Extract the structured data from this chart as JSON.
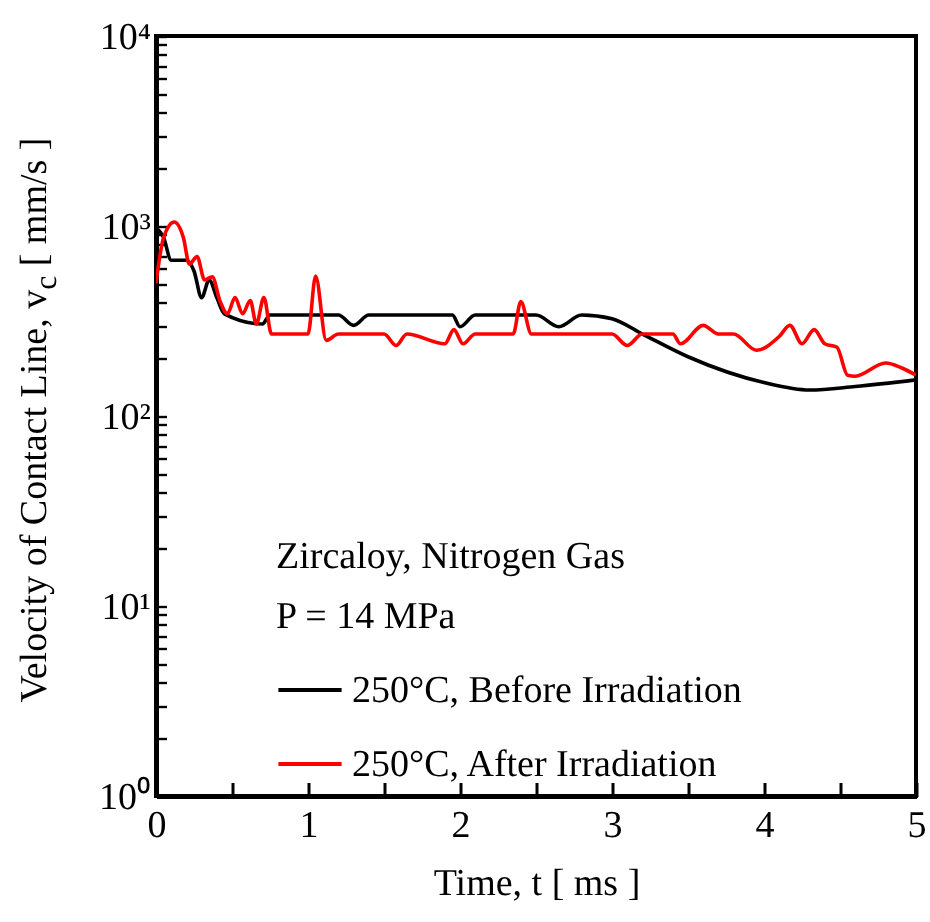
{
  "chart_data": {
    "type": "line",
    "xlabel": "Time,  t   [ ms ]",
    "ylabel": "Velocity of Contact Line,  v$_{c}$  [ mm/s ]",
    "annotations": [
      "Zircaloy, Nitrogen Gas",
      "P = 14 MPa"
    ],
    "log": "y",
    "legend": "bottom",
    "line_style": "solid",
    "marker": "none",
    "grid": false,
    "xlim": [
      0,
      5
    ],
    "xticks": [
      0,
      {
        "value": 0.5,
        "label": null
      },
      1,
      {
        "value": 1.5,
        "label": null
      },
      2,
      {
        "value": 2.5,
        "label": null
      },
      3,
      {
        "value": 3.5,
        "label": null
      },
      4,
      {
        "value": 4.5,
        "label": null
      },
      5
    ],
    "ylim": [
      1,
      10000
    ],
    "yticks": [
      {
        "value": 1,
        "label": "10⁰"
      },
      {
        "value": 2,
        "label": null
      },
      {
        "value": 3,
        "label": null
      },
      {
        "value": 4,
        "label": null
      },
      {
        "value": 5,
        "label": null
      },
      {
        "value": 6,
        "label": null
      },
      {
        "value": 7,
        "label": null
      },
      {
        "value": 8,
        "label": null
      },
      {
        "value": 9,
        "label": null
      },
      {
        "value": 10,
        "label": "10¹"
      },
      {
        "value": 20,
        "label": null
      },
      {
        "value": 30,
        "label": null
      },
      {
        "value": 40,
        "label": null
      },
      {
        "value": 50,
        "label": null
      },
      {
        "value": 60,
        "label": null
      },
      {
        "value": 70,
        "label": null
      },
      {
        "value": 80,
        "label": null
      },
      {
        "value": 90,
        "label": null
      },
      {
        "value": 100,
        "label": "10²"
      },
      {
        "value": 200,
        "label": null
      },
      {
        "value": 300,
        "label": null
      },
      {
        "value": 400,
        "label": null
      },
      {
        "value": 500,
        "label": null
      },
      {
        "value": 600,
        "label": null
      },
      {
        "value": 700,
        "label": null
      },
      {
        "value": 800,
        "label": null
      },
      {
        "value": 900,
        "label": null
      },
      {
        "value": 1000,
        "label": "10³"
      },
      {
        "value": 2000,
        "label": null
      },
      {
        "value": 3000,
        "label": null
      },
      {
        "value": 4000,
        "label": null
      },
      {
        "value": 5000,
        "label": null
      },
      {
        "value": 6000,
        "label": null
      },
      {
        "value": 7000,
        "label": null
      },
      {
        "value": 8000,
        "label": null
      },
      {
        "value": 9000,
        "label": null
      },
      {
        "value": 10000,
        "label": "10⁴"
      }
    ],
    "series": [
      {
        "name": "250°C, Before Irradiation",
        "color": "#000000",
        "x": [
          0,
          0.05,
          0.1,
          0.2,
          0.25,
          0.3,
          0.35,
          0.4,
          0.45,
          0.7,
          0.75,
          1.2,
          1.3,
          1.4,
          1.95,
          2.0,
          2.1,
          2.5,
          2.65,
          2.8,
          3.0,
          3.2,
          3.5,
          4.0,
          4.3,
          4.6,
          5.0
        ],
        "values": [
          980,
          870,
          660,
          660,
          580,
          420,
          520,
          420,
          345,
          305,
          340,
          340,
          300,
          340,
          340,
          295,
          340,
          340,
          295,
          340,
          325,
          270,
          205,
          150,
          137,
          143,
          155
        ]
      },
      {
        "name": "250°C, After Irradiation",
        "color": "#ff0000",
        "x": [
          0,
          0.05,
          0.12,
          0.18,
          0.22,
          0.27,
          0.32,
          0.37,
          0.42,
          0.47,
          0.52,
          0.57,
          0.62,
          0.66,
          0.71,
          0.76,
          1.0,
          1.05,
          1.12,
          1.2,
          1.5,
          1.58,
          1.65,
          1.9,
          1.96,
          2.02,
          2.1,
          2.35,
          2.4,
          2.47,
          2.7,
          3.0,
          3.1,
          3.2,
          3.4,
          3.45,
          3.6,
          3.7,
          3.8,
          3.95,
          4.1,
          4.17,
          4.25,
          4.33,
          4.4,
          4.48,
          4.55,
          4.6,
          4.8,
          4.9,
          5.0
        ],
        "values": [
          500,
          870,
          1050,
          870,
          630,
          690,
          520,
          540,
          405,
          345,
          420,
          345,
          405,
          305,
          420,
          270,
          270,
          545,
          250,
          270,
          270,
          235,
          270,
          240,
          285,
          240,
          270,
          270,
          400,
          270,
          270,
          270,
          235,
          270,
          270,
          240,
          300,
          270,
          270,
          222,
          262,
          300,
          240,
          285,
          240,
          230,
          164,
          162,
          190,
          180,
          164
        ]
      }
    ]
  }
}
